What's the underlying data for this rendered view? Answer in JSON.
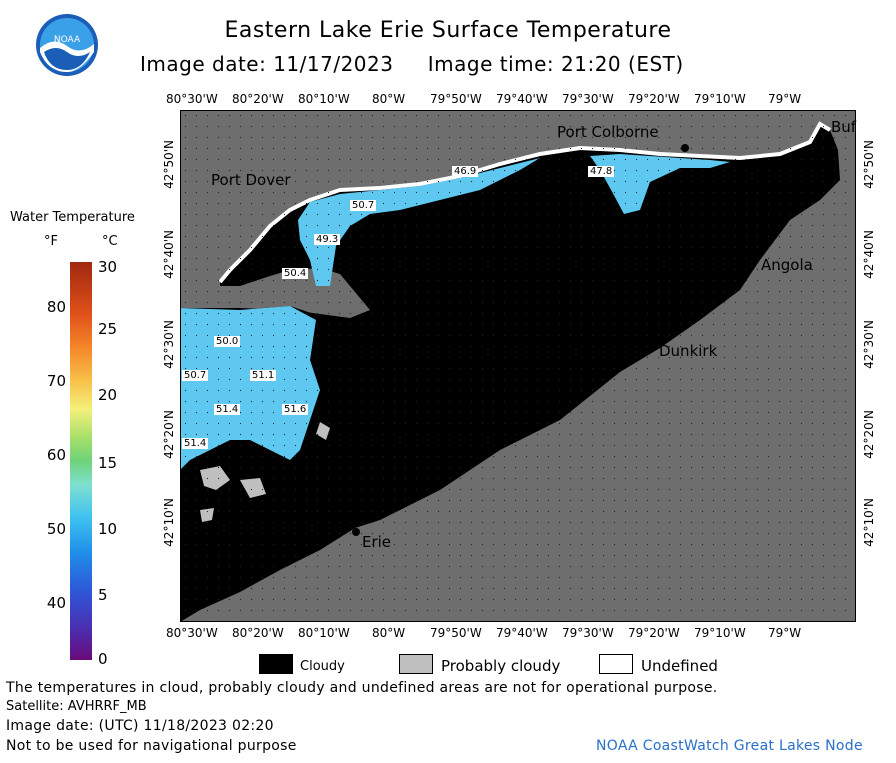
{
  "header": {
    "title": "Eastern Lake Erie Surface Temperature",
    "subtitle": "Image date: 11/17/2023     Image time: 21:20 (EST)",
    "logo_text": "NOAA"
  },
  "legend": {
    "title": "Water Temperature",
    "unit_f": "°F",
    "unit_c": "°C",
    "f_ticks": [
      "80",
      "70",
      "60",
      "50",
      "40"
    ],
    "c_ticks": [
      "30",
      "25",
      "20",
      "15",
      "10",
      "5",
      "0"
    ]
  },
  "map": {
    "lon_labels": [
      "80°30'W",
      "80°20'W",
      "80°10'W",
      "80°W",
      "79°50'W",
      "79°40'W",
      "79°30'W",
      "79°20'W",
      "79°10'W",
      "79°W"
    ],
    "lat_labels_left": [
      "42°50'N",
      "42°40'N",
      "42°30'N",
      "42°20'N",
      "42°10'N"
    ],
    "lat_labels_right": [
      "42°50'N",
      "42°40'N",
      "42°30'N",
      "42°20'N",
      "42°10'N"
    ],
    "cities": {
      "port_colborne": "Port Colborne",
      "port_dover": "Port Dover",
      "buffalo": "Buf",
      "angola": "Angola",
      "dunkirk": "Dunkirk",
      "erie": "Erie"
    },
    "temps": [
      "46.9",
      "47.8",
      "50.7",
      "49.3",
      "50.4",
      "50.0",
      "50.7",
      "51.1",
      "51.4",
      "51.6",
      "51.4"
    ]
  },
  "key": {
    "cloudy": "Cloudy",
    "probably_cloudy": "Probably cloudy",
    "undefined": "Undefined",
    "colors": {
      "cloudy": "#000000",
      "probably_cloudy": "#bfbfbf",
      "undefined": "#ffffff",
      "land": "#6e6e6e",
      "water": "#5ec8f0"
    }
  },
  "footer": {
    "disclaimer": "The temperatures in cloud, probably cloudy and undefined areas are not for operational purpose.",
    "satellite": "Satellite: AVHRRF_MB",
    "utc": "Image date: (UTC) 11/18/2023  02:20",
    "nav": "Not to be used for navigational purpose",
    "credit": "NOAA CoastWatch Great Lakes Node"
  }
}
